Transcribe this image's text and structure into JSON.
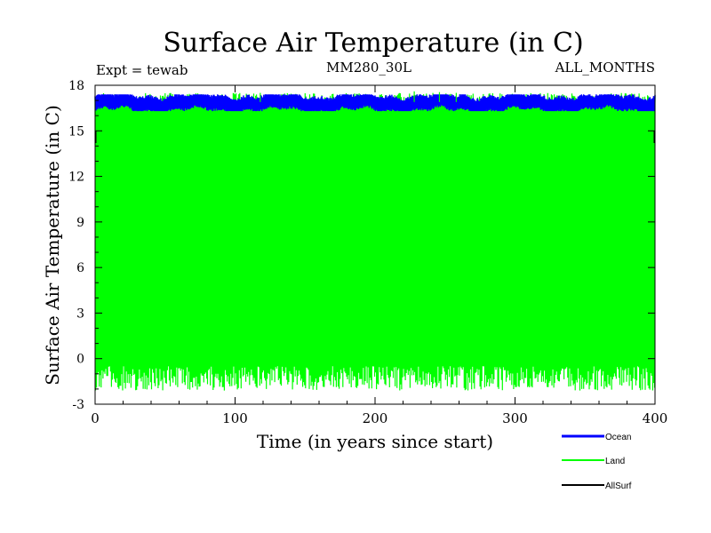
{
  "chart_data": {
    "type": "line",
    "title": "Surface Air Temperature (in C)",
    "subtitle_left": "Expt = tewab",
    "subtitle_center": "MM280_30L",
    "subtitle_right": "ALL_MONTHS",
    "xlabel": "Time (in years since start)",
    "ylabel": "Surface Air Temperature (in C)",
    "xlim": [
      0,
      400
    ],
    "ylim": [
      -3,
      18
    ],
    "x_ticks": [
      0,
      100,
      200,
      300,
      400
    ],
    "y_ticks": [
      -3,
      0,
      3,
      6,
      9,
      12,
      15,
      18
    ],
    "x_tick_labels": [
      "0",
      "100",
      "200",
      "300",
      "400"
    ],
    "y_tick_labels": [
      "-3",
      "0",
      "3",
      "6",
      "9",
      "12",
      "15",
      "18"
    ],
    "grid": false,
    "legend_position": "bottom-right, outside plot",
    "series": [
      {
        "name": "Ocean",
        "color": "#0000ff",
        "description": "monthly values oscillating between about 16.3 and 17.4",
        "min": 16.3,
        "max": 17.4,
        "mean": 16.8
      },
      {
        "name": "Land",
        "color": "#00ff00",
        "description": "monthly values oscillating between about -2.2 and 17.6",
        "min": -2.2,
        "max": 17.6,
        "mean": 7.5
      },
      {
        "name": "AllSurf",
        "color": "#000000",
        "description": "mostly hidden behind Land trace",
        "min": 14.2,
        "max": 15.0,
        "mean": 14.6
      }
    ]
  }
}
